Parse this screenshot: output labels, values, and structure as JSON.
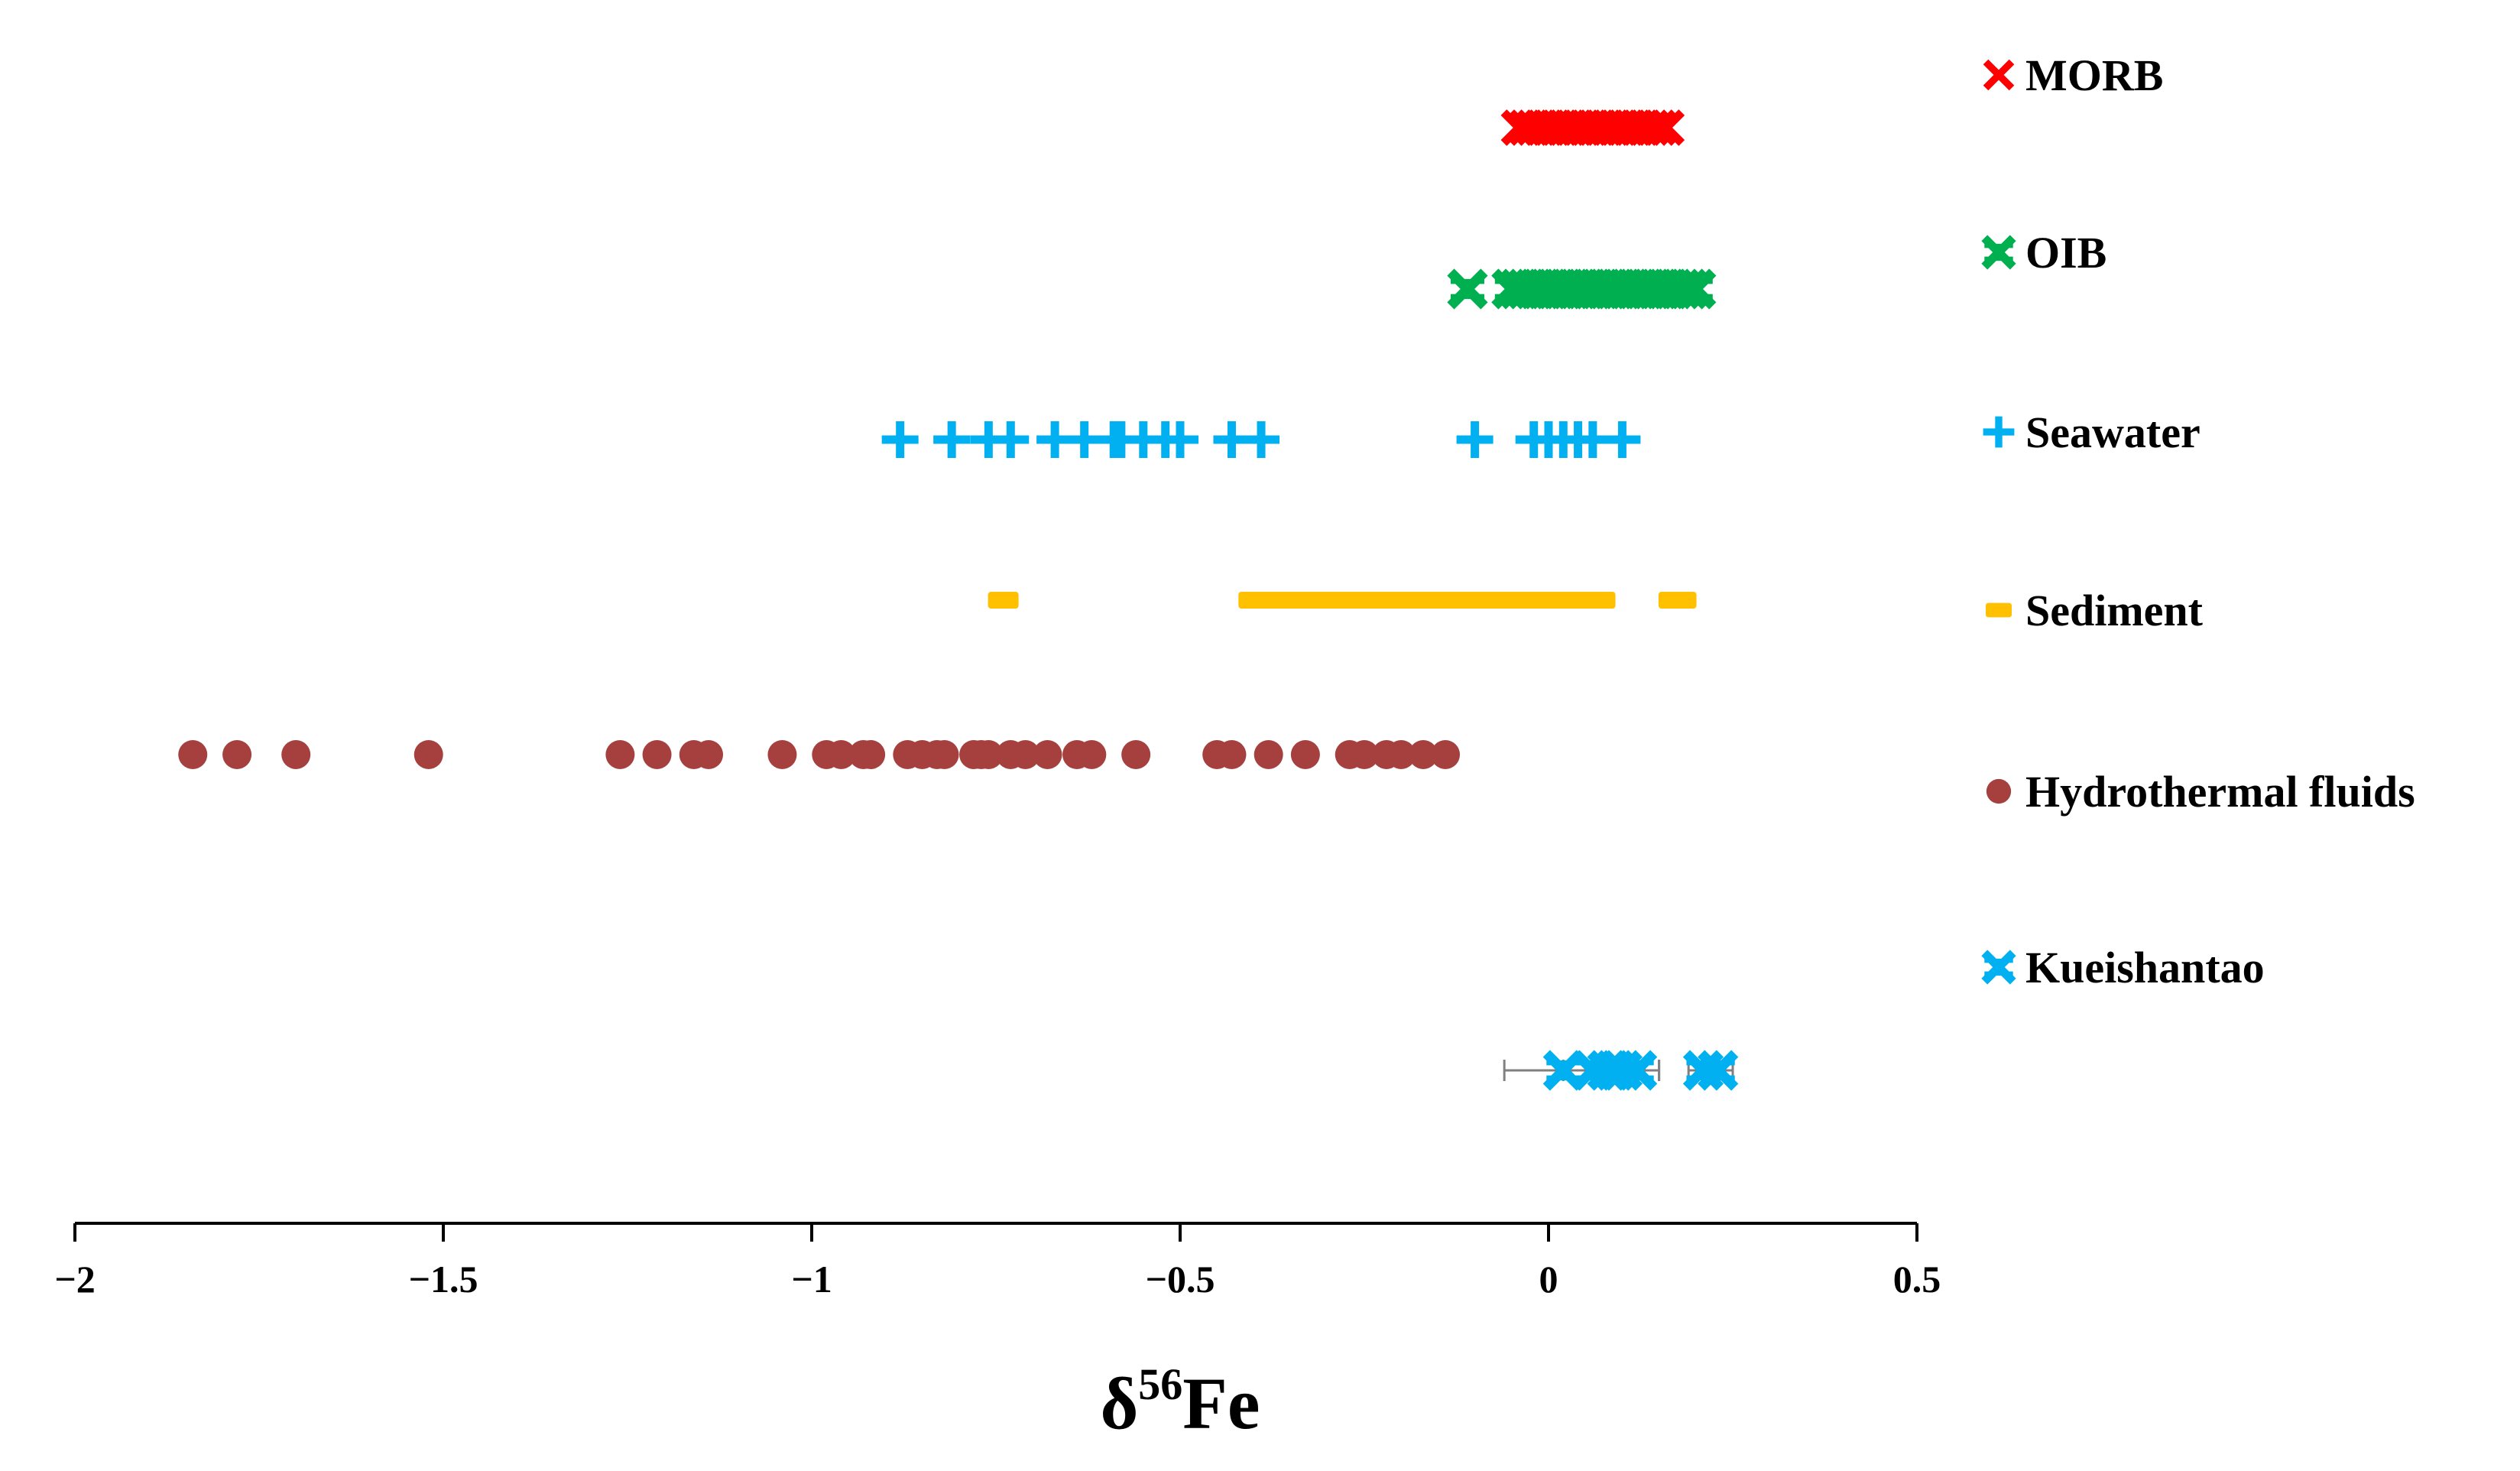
{
  "chart_data": {
    "type": "scatter",
    "xlabel": "δ56Fe",
    "xlabel_base": "δ",
    "xlabel_superscript": "56",
    "xlabel_element": "Fe",
    "xlim": [
      -2,
      0.5
    ],
    "x_ticks": [
      -2,
      -1.5,
      -1,
      -0.5,
      0,
      0.5
    ],
    "x_tick_labels": [
      "−2",
      "−1.5",
      "−1",
      "−0.5",
      "0",
      "0.5"
    ],
    "legend_position": "right",
    "series": [
      {
        "name": "MORB",
        "marker": "x",
        "color": "#ff0000",
        "x": [
          -0.04,
          -0.03,
          -0.02,
          -0.01,
          0.0,
          0.01,
          0.02,
          0.03,
          0.04,
          0.05,
          0.06,
          0.07,
          0.08,
          0.09,
          0.1,
          0.11,
          0.12,
          0.13,
          0.14,
          0.15,
          0.16
        ]
      },
      {
        "name": "OIB",
        "marker": "x-heavy",
        "color": "#00b050",
        "x": [
          -0.11,
          -0.05,
          -0.04,
          -0.03,
          -0.02,
          -0.01,
          0.0,
          0.01,
          0.02,
          0.03,
          0.04,
          0.05,
          0.06,
          0.07,
          0.08,
          0.09,
          0.1,
          0.11,
          0.12,
          0.13,
          0.14,
          0.15,
          0.16,
          0.17,
          0.18,
          0.19,
          0.2
        ]
      },
      {
        "name": "Seawater",
        "marker": "plus",
        "color": "#00b0f0",
        "x": [
          -0.88,
          -0.81,
          -0.76,
          -0.73,
          -0.67,
          -0.63,
          -0.59,
          -0.58,
          -0.55,
          -0.52,
          -0.5,
          -0.43,
          -0.39,
          -0.1,
          -0.02,
          0.0,
          0.02,
          0.04,
          0.06,
          0.1
        ]
      },
      {
        "name": "Sediment",
        "marker": "dash",
        "color": "#ffc000",
        "x": [
          -0.74,
          -0.4,
          -0.35,
          -0.3,
          -0.25,
          -0.2,
          -0.15,
          -0.1,
          -0.05,
          0.0,
          0.05,
          0.07,
          0.17,
          0.18
        ]
      },
      {
        "name": "Hydrothermal fluids",
        "marker": "circle",
        "color": "#a5403e",
        "x": [
          -1.84,
          -1.78,
          -1.7,
          -1.52,
          -1.26,
          -1.21,
          -1.16,
          -1.14,
          -1.04,
          -0.98,
          -0.96,
          -0.93,
          -0.92,
          -0.87,
          -0.85,
          -0.83,
          -0.82,
          -0.78,
          -0.77,
          -0.76,
          -0.73,
          -0.71,
          -0.68,
          -0.64,
          -0.62,
          -0.56,
          -0.45,
          -0.43,
          -0.38,
          -0.33,
          -0.27,
          -0.25,
          -0.22,
          -0.2,
          -0.17,
          -0.14
        ]
      },
      {
        "name": "Kueishantao",
        "marker": "x-heavy",
        "color": "#00b0f0",
        "x": [
          0.02,
          0.06,
          0.08,
          0.09,
          0.1,
          0.12,
          0.21,
          0.23
        ],
        "error": [
          0.08,
          0.04,
          0.05,
          0.04,
          0.05,
          0.03,
          0.02,
          0.02
        ],
        "error_color": "#808080"
      }
    ]
  }
}
